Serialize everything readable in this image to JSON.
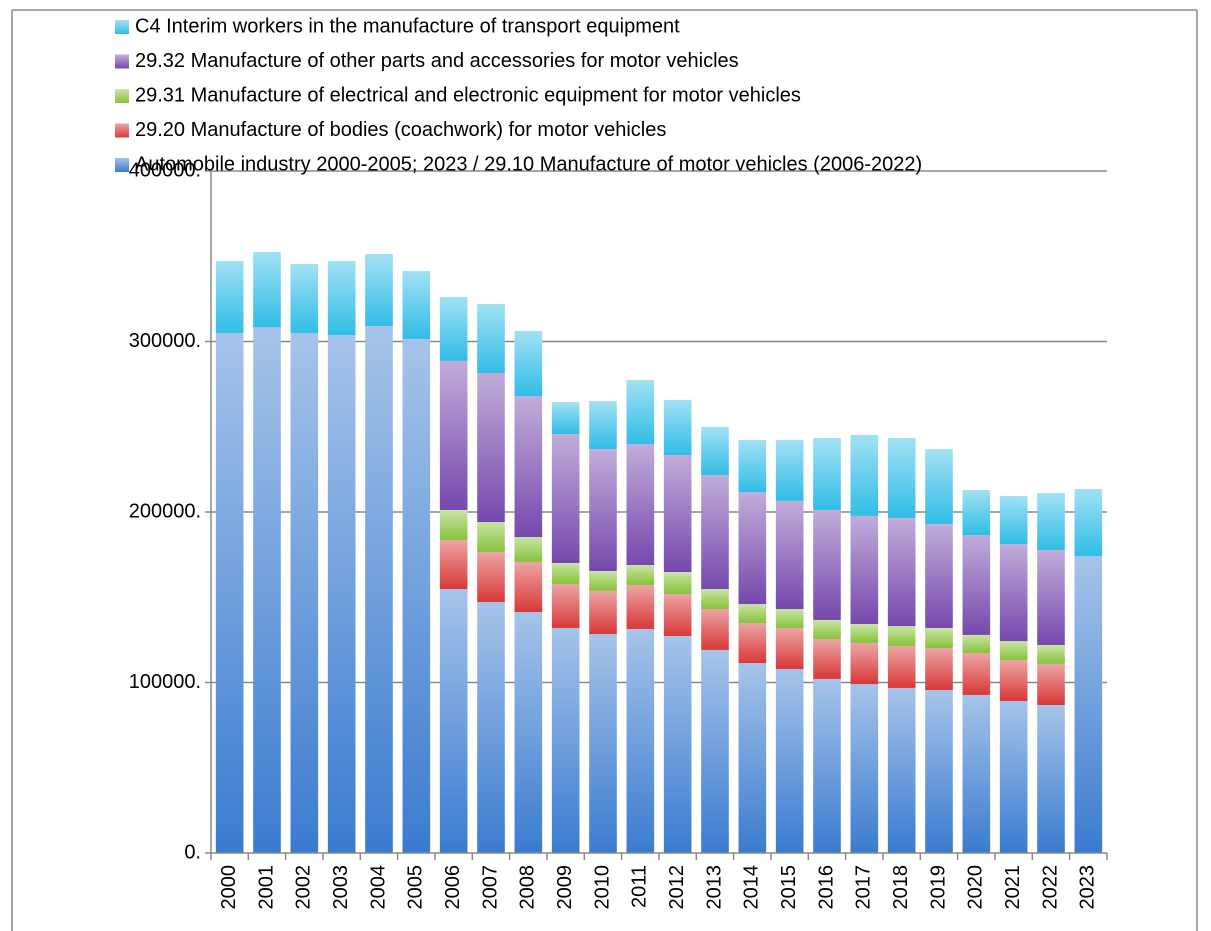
{
  "chart_data": {
    "type": "stacked_bar",
    "categories": [
      "2000",
      "2001",
      "2002",
      "2003",
      "2004",
      "2005",
      "2006",
      "2007",
      "2008",
      "2009",
      "2010",
      "2011",
      "2012",
      "2013",
      "2014",
      "2015",
      "2016",
      "2017",
      "2018",
      "2019",
      "2020",
      "2021",
      "2022",
      "2023"
    ],
    "series": [
      {
        "name": "Automobile industry 2000-2005; 2023 / 29.10 Manufacture of motor vehicles (2006-2022)",
        "color": "#3a7bd0",
        "values": [
          305000,
          308500,
          305000,
          303800,
          309100,
          301500,
          154800,
          147200,
          141300,
          132000,
          128400,
          131400,
          127300,
          119100,
          111400,
          107900,
          102100,
          99100,
          96800,
          95600,
          92700,
          89100,
          86800,
          174200
        ]
      },
      {
        "name": "29.20 Manufacture of bodies (coachwork) for motor vehicles",
        "color": "#d83838",
        "values": [
          null,
          null,
          null,
          null,
          null,
          null,
          28800,
          29300,
          29400,
          25800,
          25300,
          25800,
          24600,
          24000,
          23500,
          24100,
          23400,
          24100,
          24600,
          24600,
          24600,
          24100,
          24100,
          null
        ]
      },
      {
        "name": "29.31 Manufacture of electrical and electronic equipment for motor vehicles",
        "color": "#88c23a",
        "values": [
          null,
          null,
          null,
          null,
          null,
          null,
          17600,
          17600,
          14600,
          12300,
          11700,
          11700,
          12900,
          11700,
          11100,
          11100,
          11200,
          11100,
          11700,
          11800,
          10600,
          11100,
          11100,
          null
        ]
      },
      {
        "name": "29.32 Manufacture of other parts and accessories for motor vehicles",
        "color": "#7648ad",
        "values": [
          null,
          null,
          null,
          null,
          null,
          null,
          87400,
          87400,
          82700,
          75600,
          71500,
          71000,
          68600,
          66900,
          65700,
          63400,
          64500,
          63400,
          63400,
          61000,
          58600,
          56900,
          55700,
          null
        ]
      },
      {
        "name": "C4 Interim workers in the manufacture of transport equipment",
        "color": "#30bde6",
        "values": [
          42200,
          44000,
          40500,
          43400,
          42200,
          39800,
          37500,
          40500,
          38200,
          18800,
          28200,
          37500,
          32300,
          28200,
          30500,
          35700,
          42200,
          47500,
          46900,
          43900,
          26400,
          28200,
          33400,
          39300
        ]
      }
    ],
    "ylim": [
      0,
      400000
    ],
    "yticks": [
      {
        "value": 0,
        "label": "0."
      },
      {
        "value": 100000,
        "label": "100000."
      },
      {
        "value": 200000,
        "label": "200000."
      },
      {
        "value": 300000,
        "label": "300000."
      },
      {
        "value": 400000,
        "label": "400000."
      }
    ],
    "grid": true,
    "legend": "top"
  }
}
